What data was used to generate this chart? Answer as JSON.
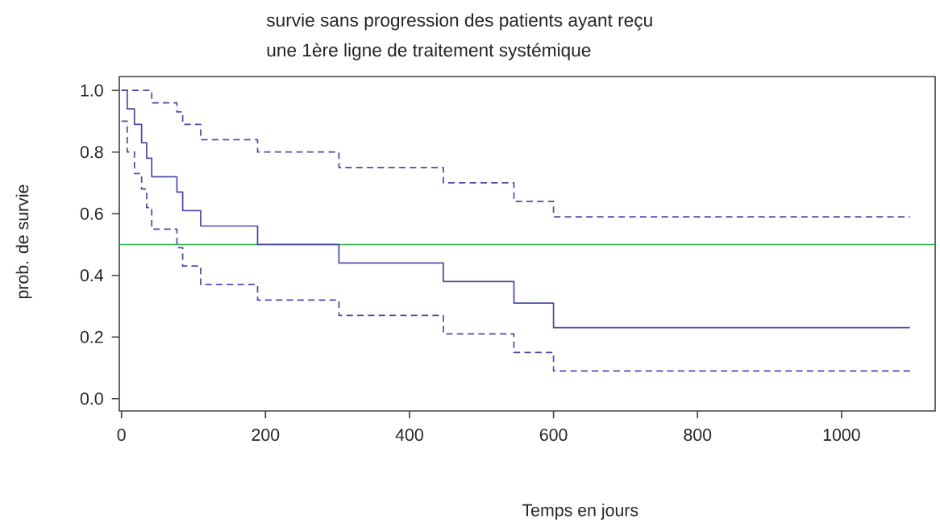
{
  "chart_data": {
    "type": "step",
    "title": "survie sans progression des patients ayant reçu",
    "subtitle": "une 1ère ligne de traitement systémique",
    "xlabel": "Temps en jours",
    "ylabel": "prob. de survie",
    "xlim": [
      -3,
      1130
    ],
    "ylim": [
      -0.04,
      1.045
    ],
    "xticks": [
      0,
      200,
      400,
      600,
      800,
      1000
    ],
    "yticks": [
      {
        "value": 0,
        "label": "0.0"
      },
      0.2,
      0.4,
      0.6,
      0.8,
      {
        "value": 1,
        "label": "1.0"
      }
    ],
    "series": [
      {
        "color": "#4b4ba8",
        "line_style": "solid",
        "x": [
          0,
          8,
          18,
          28,
          35,
          42,
          77,
          85,
          110,
          189,
          302,
          447,
          545,
          600,
          1095
        ],
        "values": [
          1.0,
          0.94,
          0.89,
          0.83,
          0.78,
          0.72,
          0.67,
          0.61,
          0.56,
          0.5,
          0.44,
          0.38,
          0.31,
          0.23,
          0.23
        ]
      },
      {
        "color": "#4b4ba8",
        "line_style": "dashed",
        "x": [
          0,
          42,
          77,
          85,
          110,
          189,
          302,
          447,
          545,
          600,
          1095
        ],
        "values": [
          1.0,
          0.96,
          0.93,
          0.89,
          0.84,
          0.8,
          0.75,
          0.7,
          0.64,
          0.59,
          0.59
        ]
      },
      {
        "color": "#4b4ba8",
        "line_style": "dashed",
        "x": [
          0,
          8,
          18,
          28,
          35,
          42,
          77,
          85,
          110,
          189,
          302,
          447,
          545,
          600,
          1095
        ],
        "values": [
          0.9,
          0.8,
          0.73,
          0.68,
          0.62,
          0.55,
          0.49,
          0.43,
          0.37,
          0.32,
          0.27,
          0.21,
          0.15,
          0.09,
          0.09
        ]
      }
    ],
    "ref_lines": [
      {
        "axis": "y",
        "value": 0.5,
        "color": "#2db34a"
      }
    ]
  }
}
